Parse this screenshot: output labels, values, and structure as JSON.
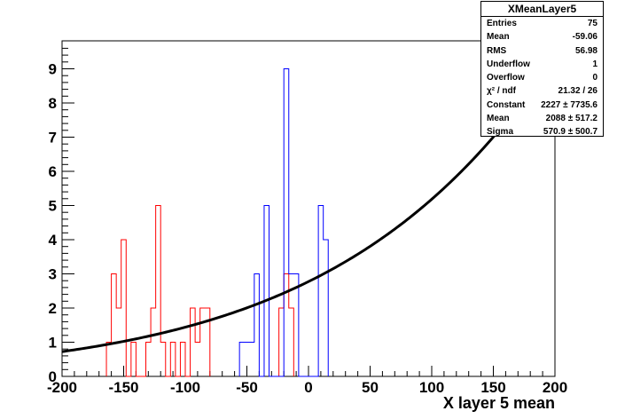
{
  "chart_data": {
    "type": "histogram",
    "title": "",
    "xlabel": "X layer 5 mean",
    "ylabel": "",
    "xlim": [
      -200,
      200
    ],
    "ylim": [
      0,
      9.8
    ],
    "x_ticks": [
      -200,
      -150,
      -100,
      -50,
      0,
      50,
      100,
      150,
      200
    ],
    "y_ticks": [
      0,
      1,
      2,
      3,
      4,
      5,
      6,
      7,
      8,
      9
    ],
    "bin_width": 4,
    "series": [
      {
        "color": "#ff0000",
        "bins": [
          {
            "x0": -164,
            "x1": -160,
            "y": 1
          },
          {
            "x0": -160,
            "x1": -156,
            "y": 3
          },
          {
            "x0": -156,
            "x1": -152,
            "y": 2
          },
          {
            "x0": -152,
            "x1": -148,
            "y": 4
          },
          {
            "x0": -148,
            "x1": -144,
            "y": 0
          },
          {
            "x0": -144,
            "x1": -140,
            "y": 1
          },
          {
            "x0": -140,
            "x1": -136,
            "y": 0
          },
          {
            "x0": -136,
            "x1": -132,
            "y": 0
          },
          {
            "x0": -132,
            "x1": -128,
            "y": 1
          },
          {
            "x0": -128,
            "x1": -124,
            "y": 2
          },
          {
            "x0": -124,
            "x1": -120,
            "y": 5
          },
          {
            "x0": -120,
            "x1": -116,
            "y": 1
          },
          {
            "x0": -116,
            "x1": -112,
            "y": 0
          },
          {
            "x0": -112,
            "x1": -108,
            "y": 1
          },
          {
            "x0": -108,
            "x1": -104,
            "y": 0
          },
          {
            "x0": -104,
            "x1": -100,
            "y": 1
          },
          {
            "x0": -100,
            "x1": -96,
            "y": 0
          },
          {
            "x0": -96,
            "x1": -92,
            "y": 2
          },
          {
            "x0": -92,
            "x1": -88,
            "y": 1
          },
          {
            "x0": -88,
            "x1": -84,
            "y": 2
          },
          {
            "x0": -84,
            "x1": -80,
            "y": 2
          },
          {
            "x0": -24,
            "x1": -20,
            "y": 2
          },
          {
            "x0": -20,
            "x1": -16,
            "y": 3
          },
          {
            "x0": -16,
            "x1": -12,
            "y": 2
          }
        ]
      },
      {
        "color": "#0000ff",
        "bins": [
          {
            "x0": -56,
            "x1": -52,
            "y": 1
          },
          {
            "x0": -52,
            "x1": -48,
            "y": 1
          },
          {
            "x0": -48,
            "x1": -44,
            "y": 1
          },
          {
            "x0": -44,
            "x1": -40,
            "y": 3
          },
          {
            "x0": -40,
            "x1": -36,
            "y": 0
          },
          {
            "x0": -36,
            "x1": -32,
            "y": 5
          },
          {
            "x0": -32,
            "x1": -28,
            "y": 0
          },
          {
            "x0": -28,
            "x1": -24,
            "y": 0
          },
          {
            "x0": -24,
            "x1": -20,
            "y": 0
          },
          {
            "x0": -20,
            "x1": -16,
            "y": 9
          },
          {
            "x0": -16,
            "x1": -12,
            "y": 3
          },
          {
            "x0": -12,
            "x1": -8,
            "y": 3
          },
          {
            "x0": -8,
            "x1": -4,
            "y": 0
          },
          {
            "x0": -4,
            "x1": 0,
            "y": 0
          },
          {
            "x0": 0,
            "x1": 4,
            "y": 0
          },
          {
            "x0": 4,
            "x1": 8,
            "y": 0
          },
          {
            "x0": 8,
            "x1": 12,
            "y": 5
          },
          {
            "x0": 12,
            "x1": 16,
            "y": 4
          }
        ]
      }
    ],
    "fit": {
      "color": "#000000",
      "function": "gaus",
      "constant": 2227,
      "mean": 2088,
      "sigma": 570.9,
      "x_range": [
        -200,
        168
      ]
    }
  },
  "stats_box": {
    "title": "XMeanLayer5",
    "rows": [
      {
        "key": "Entries",
        "value": "75"
      },
      {
        "key": "Mean",
        "value": "-59.06"
      },
      {
        "key": "RMS",
        "value": "56.98"
      },
      {
        "key": "Underflow",
        "value": "1"
      },
      {
        "key": "Overflow",
        "value": "0"
      },
      {
        "key": "χ² / ndf",
        "value": "21.32 / 26"
      },
      {
        "key": "Constant",
        "value": "2227 ± 7735.6"
      },
      {
        "key": "Mean",
        "value": "2088 ± 517.2"
      },
      {
        "key": "Sigma",
        "value": "570.9 ± 500.7"
      }
    ]
  }
}
